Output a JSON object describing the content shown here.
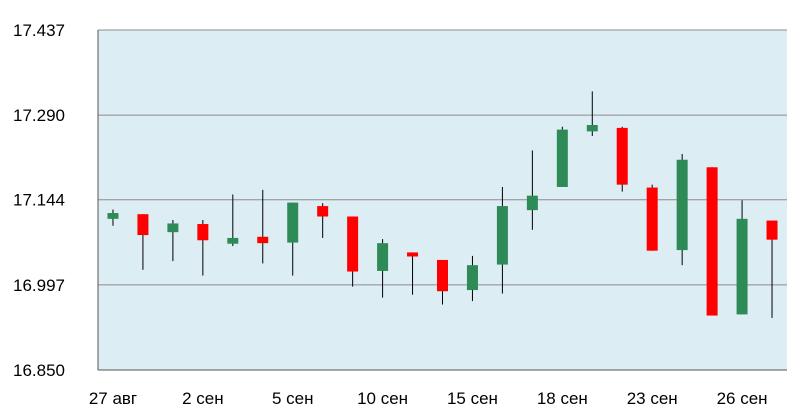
{
  "chart_data": {
    "type": "candlestick",
    "title": "",
    "xlabel": "",
    "ylabel": "",
    "ylim": [
      16.85,
      17.437
    ],
    "y_ticks": [
      "17.437",
      "17.290",
      "17.144",
      "16.997",
      "16.850"
    ],
    "y_tick_values": [
      17.437,
      17.29,
      17.144,
      16.997,
      16.85
    ],
    "x_ticks": [
      {
        "label": "27 авг",
        "index": 0
      },
      {
        "label": "2 сен",
        "index": 3
      },
      {
        "label": "5 сен",
        "index": 6
      },
      {
        "label": "10 сен",
        "index": 9
      },
      {
        "label": "15 сен",
        "index": 12
      },
      {
        "label": "18 сен",
        "index": 15
      },
      {
        "label": "23 сен",
        "index": 18
      },
      {
        "label": "26 сен",
        "index": 21
      }
    ],
    "grid": "horizontal",
    "colors": {
      "plot_bg": "#dcedf3",
      "up": "#2e8b57",
      "down": "#ff0000",
      "wick": "#000000",
      "grid": "#8c8c8c"
    },
    "candles": [
      {
        "open": 17.111,
        "close": 17.121,
        "high": 17.127,
        "low": 17.099
      },
      {
        "open": 17.119,
        "close": 17.083,
        "high": 17.119,
        "low": 17.023
      },
      {
        "open": 17.088,
        "close": 17.103,
        "high": 17.109,
        "low": 17.038
      },
      {
        "open": 17.102,
        "close": 17.074,
        "high": 17.109,
        "low": 17.013
      },
      {
        "open": 17.068,
        "close": 17.078,
        "high": 17.153,
        "low": 17.064
      },
      {
        "open": 17.08,
        "close": 17.069,
        "high": 17.161,
        "low": 17.034
      },
      {
        "open": 17.07,
        "close": 17.139,
        "high": 17.139,
        "low": 17.013
      },
      {
        "open": 17.133,
        "close": 17.115,
        "high": 17.138,
        "low": 17.078
      },
      {
        "open": 17.115,
        "close": 17.02,
        "high": 17.115,
        "low": 16.994
      },
      {
        "open": 17.021,
        "close": 17.069,
        "high": 17.076,
        "low": 16.975
      },
      {
        "open": 17.053,
        "close": 17.046,
        "high": 17.053,
        "low": 16.98
      },
      {
        "open": 17.04,
        "close": 16.986,
        "high": 17.04,
        "low": 16.963
      },
      {
        "open": 16.988,
        "close": 17.031,
        "high": 17.047,
        "low": 16.969
      },
      {
        "open": 17.032,
        "close": 17.133,
        "high": 17.166,
        "low": 16.982
      },
      {
        "open": 17.126,
        "close": 17.151,
        "high": 17.229,
        "low": 17.092
      },
      {
        "open": 17.166,
        "close": 17.265,
        "high": 17.27,
        "low": 17.166
      },
      {
        "open": 17.262,
        "close": 17.273,
        "high": 17.331,
        "low": 17.254
      },
      {
        "open": 17.268,
        "close": 17.17,
        "high": 17.27,
        "low": 17.158
      },
      {
        "open": 17.165,
        "close": 17.056,
        "high": 17.17,
        "low": 17.056
      },
      {
        "open": 17.057,
        "close": 17.213,
        "high": 17.223,
        "low": 17.031
      },
      {
        "open": 17.2,
        "close": 16.944,
        "high": 17.2,
        "low": 16.944
      },
      {
        "open": 16.946,
        "close": 17.111,
        "high": 17.143,
        "low": 16.946
      },
      {
        "open": 17.108,
        "close": 17.075,
        "high": 17.108,
        "low": 16.94
      }
    ]
  }
}
